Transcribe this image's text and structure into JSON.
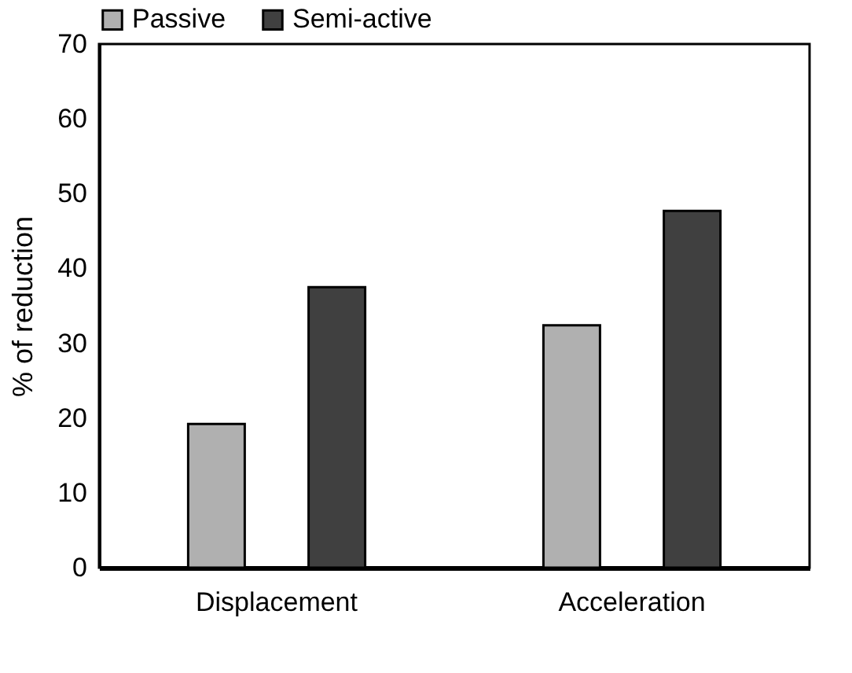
{
  "chart_data": {
    "type": "bar",
    "ylabel": "% of reduction",
    "categories": [
      "Displacement",
      "Acceleration"
    ],
    "series": [
      {
        "name": "Passive",
        "color": "#b0b0b0",
        "values": [
          19.2,
          32.4
        ]
      },
      {
        "name": "Semi-active",
        "color": "#404040",
        "values": [
          37.5,
          47.7
        ]
      }
    ],
    "ylim": [
      0,
      70
    ],
    "yticks": [
      0,
      10,
      20,
      30,
      40,
      50,
      60,
      70
    ],
    "grid": false,
    "legend": "top"
  }
}
